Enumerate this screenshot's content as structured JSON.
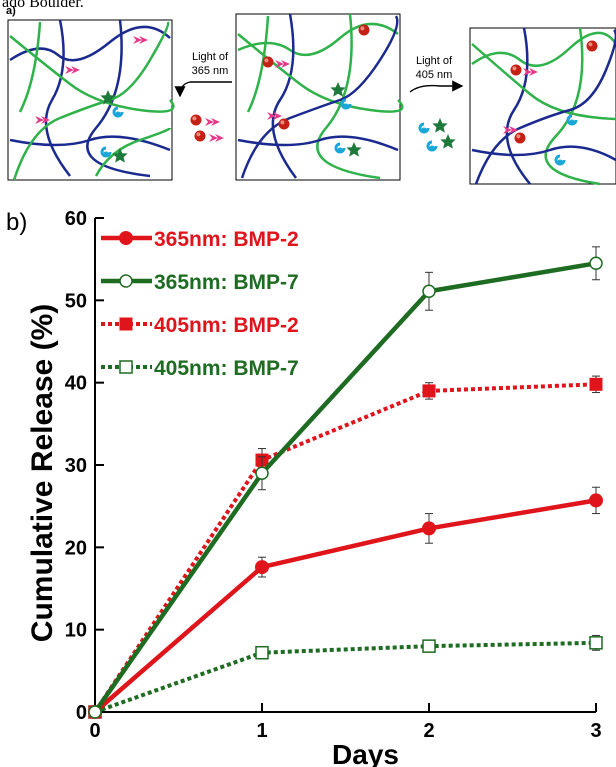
{
  "header_fragment": "ado Boulder.",
  "panel_a": {
    "label": "a)",
    "arrow_left_label": [
      "Light of",
      "365 nm"
    ],
    "arrow_right_label": [
      "Light of",
      "405 nm"
    ]
  },
  "panel_b": {
    "label": "b)"
  },
  "colors": {
    "red": "#e0141b",
    "green": "#1e6b22",
    "navy": "#1b2a8f",
    "mesh_green": "#2fb24a",
    "pink": "#e8388a",
    "cyan": "#1aa7d8"
  },
  "chart_data": {
    "type": "line",
    "xlabel": "Days",
    "ylabel": "Cumulative Release (%)",
    "x": [
      0,
      1,
      2,
      3
    ],
    "xticks": [
      "0",
      "1",
      "2",
      "3"
    ],
    "yticks": [
      "0",
      "10",
      "20",
      "30",
      "40",
      "50",
      "60"
    ],
    "xlim": [
      0,
      3
    ],
    "ylim": [
      0,
      60
    ],
    "grid": false,
    "legend_position": "top-left",
    "series": [
      {
        "name": "365nm: BMP-2",
        "values": [
          0,
          17.6,
          22.3,
          25.7
        ],
        "errors": [
          0,
          1.2,
          1.8,
          1.6
        ],
        "color": "#e0141b",
        "line": "solid",
        "marker": "filled-circle"
      },
      {
        "name": "365nm: BMP-7",
        "values": [
          0,
          29.0,
          51.1,
          54.5
        ],
        "errors": [
          0,
          2.0,
          2.3,
          2.0
        ],
        "color": "#1e6b22",
        "line": "solid",
        "marker": "open-circle"
      },
      {
        "name": "405nm: BMP-2",
        "values": [
          0,
          30.6,
          39.0,
          39.8
        ],
        "errors": [
          0,
          1.4,
          1.0,
          1.0
        ],
        "color": "#e0141b",
        "line": "dotted",
        "marker": "filled-square"
      },
      {
        "name": "405nm: BMP-7",
        "values": [
          0,
          7.2,
          8.0,
          8.4
        ],
        "errors": [
          0,
          0.5,
          0.6,
          0.9
        ],
        "color": "#1e6b22",
        "line": "dotted",
        "marker": "open-square"
      }
    ]
  }
}
